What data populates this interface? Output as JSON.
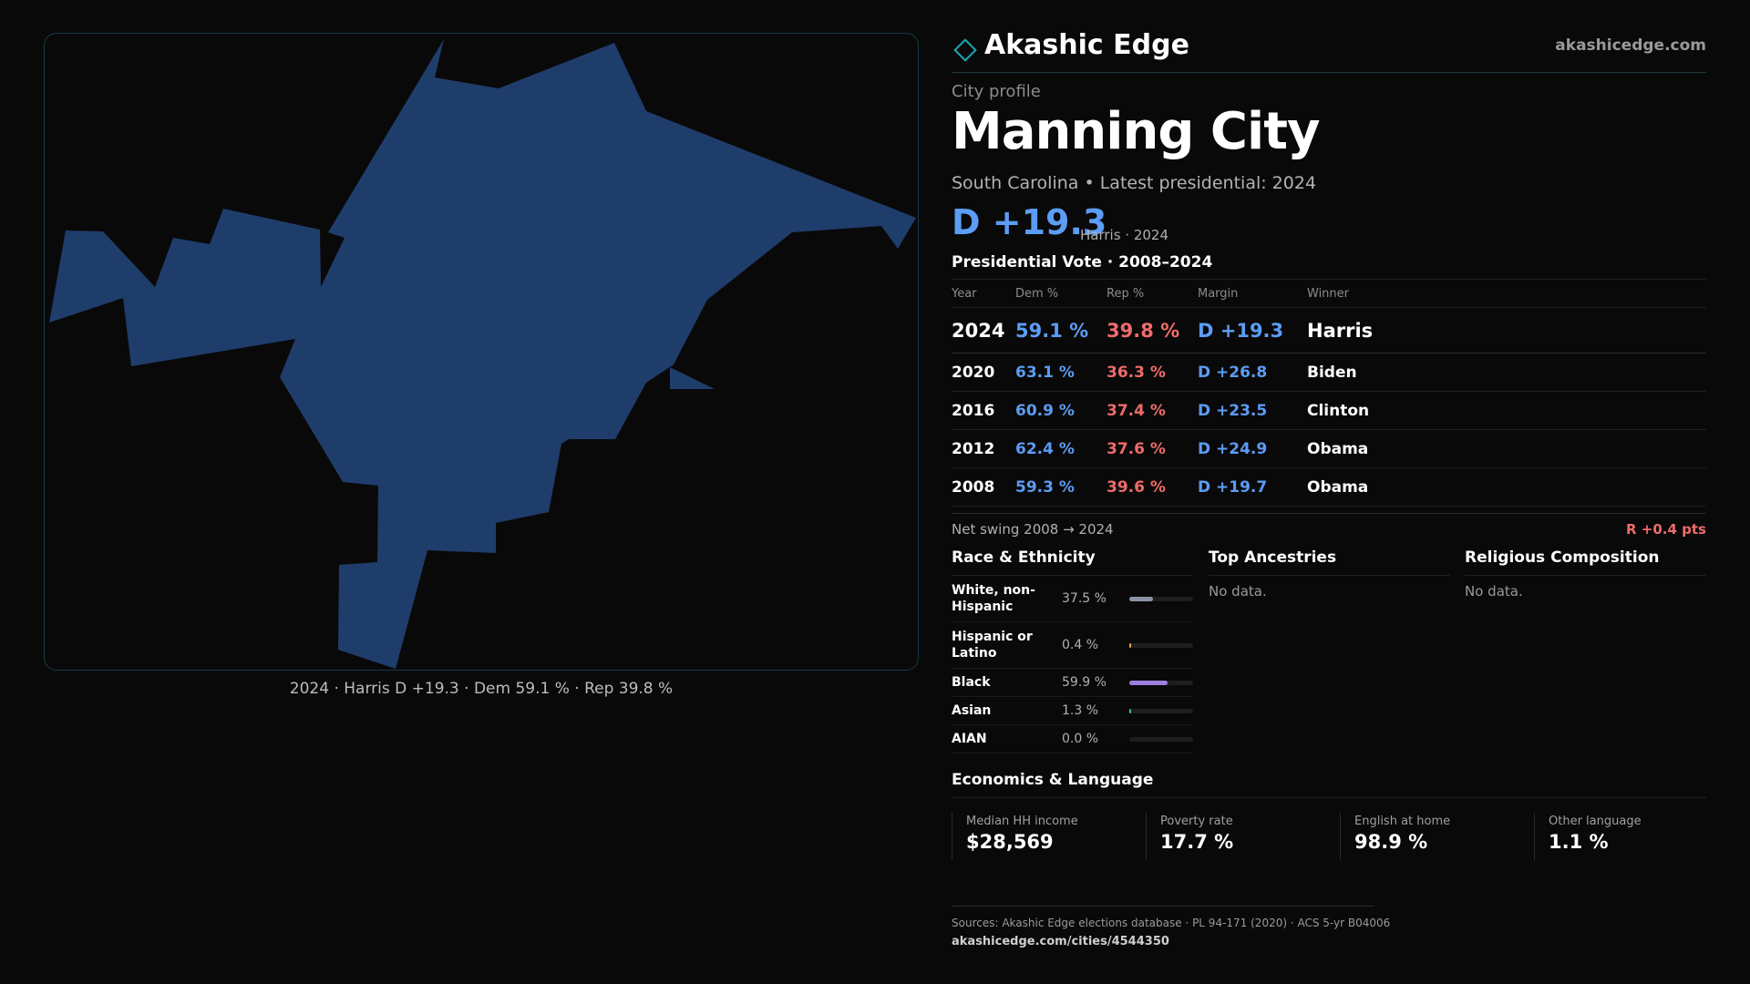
{
  "brand": {
    "name": "Akashic Edge",
    "url": "akashicedge.com",
    "logo_icon": "diamond-outline-icon",
    "accent_color": "#17a7b4"
  },
  "map": {
    "fill_color": "#1f3d6b",
    "caption": "2024 · Harris D +19.3 · Dem 59.1 % · Rep 39.8 %"
  },
  "profile": {
    "kicker": "City profile",
    "title": "Manning City",
    "subtitle": "South Carolina • Latest presidential: 2024",
    "headline_margin": "D +19.3",
    "headline_note": "Harris · 2024"
  },
  "presidential": {
    "title": "Presidential Vote · 2008–2024",
    "columns": [
      "Year",
      "Dem %",
      "Rep %",
      "Margin",
      "Winner"
    ],
    "rows": [
      {
        "year": "2024",
        "dem": "59.1 %",
        "rep": "39.8 %",
        "margin": "D +19.3",
        "winner": "Harris"
      },
      {
        "year": "2020",
        "dem": "63.1 %",
        "rep": "36.3 %",
        "margin": "D +26.8",
        "winner": "Biden"
      },
      {
        "year": "2016",
        "dem": "60.9 %",
        "rep": "37.4 %",
        "margin": "D +23.5",
        "winner": "Clinton"
      },
      {
        "year": "2012",
        "dem": "62.4 %",
        "rep": "37.6 %",
        "margin": "D +24.9",
        "winner": "Obama"
      },
      {
        "year": "2008",
        "dem": "59.3 %",
        "rep": "39.6 %",
        "margin": "D +19.7",
        "winner": "Obama"
      }
    ],
    "swing_label": "Net swing 2008 → 2024",
    "swing_value": "R +0.4 pts"
  },
  "race": {
    "title": "Race & Ethnicity",
    "rows": [
      {
        "label": "White, non-Hispanic",
        "pct": "37.5 %",
        "share": 37.5,
        "color": "#8a94a8"
      },
      {
        "label": "Hispanic or Latino",
        "pct": "0.4 %",
        "share": 0.4,
        "color": "#e0a040"
      },
      {
        "label": "Black",
        "pct": "59.9 %",
        "share": 59.9,
        "color": "#9b7fe0"
      },
      {
        "label": "Asian",
        "pct": "1.3 %",
        "share": 1.3,
        "color": "#3fb5a5"
      },
      {
        "label": "AIAN",
        "pct": "0.0 %",
        "share": 0.0,
        "color": "#b0b0b0"
      }
    ]
  },
  "ancestries": {
    "title": "Top Ancestries",
    "empty": "No data."
  },
  "religion": {
    "title": "Religious Composition",
    "empty": "No data."
  },
  "economics": {
    "title": "Economics & Language",
    "cards": [
      {
        "label": "Median HH income",
        "value": "$28,569"
      },
      {
        "label": "Poverty rate",
        "value": "17.7 %"
      },
      {
        "label": "English at home",
        "value": "98.9 %"
      },
      {
        "label": "Other language",
        "value": "1.1 %"
      }
    ]
  },
  "footer": {
    "sources": "Sources: Akashic Edge elections database · PL 94-171 (2020) · ACS 5-yr B04006",
    "page_url": "akashicedge.com/cities/4544350"
  }
}
